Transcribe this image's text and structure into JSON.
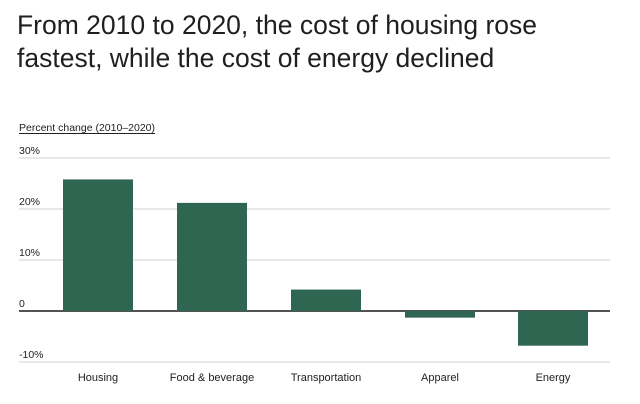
{
  "chart_data": {
    "type": "bar",
    "title": "From 2010 to 2020, the cost of housing rose fastest, while the cost of energy declined",
    "subtitle": "Percent change (2010–2020)",
    "xlabel": "",
    "ylabel": "",
    "categories": [
      "Housing",
      "Food & beverage",
      "Transportation",
      "Apparel",
      "Energy"
    ],
    "values": [
      25.8,
      21.2,
      4.2,
      -1.3,
      -6.8
    ],
    "ylim": [
      -10,
      30
    ],
    "yticks": [
      30,
      20,
      10,
      0,
      -10
    ],
    "ytick_labels": [
      "30%",
      "20%",
      "10%",
      "0",
      "-10%"
    ],
    "grid": true,
    "legend": "none",
    "bar_color": "#2e6651",
    "grid_color": "#d0d0d0",
    "zero_line_color": "#1a1a1a"
  }
}
